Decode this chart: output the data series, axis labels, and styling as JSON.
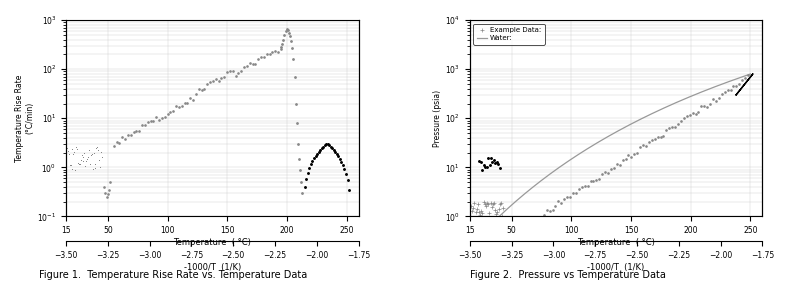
{
  "fig1": {
    "title": "Figure 1.  Temperature Rise Rate vs. Temperature Data",
    "xlabel_top": "Temperature  ( °C)",
    "xlabel_bottom": "-1000/T  (1/K)",
    "ylabel": "Temperature Rise Rate\n(°C/min)",
    "xlim_temp": [
      15,
      260
    ],
    "xlim_inv": [
      -3.5,
      -1.75
    ],
    "xticks_temp": [
      15,
      50,
      100,
      150,
      200,
      250
    ],
    "xticks_inv": [
      -3.5,
      -3.25,
      -3.0,
      -2.75,
      -2.5,
      -2.25,
      -2.0,
      -1.75
    ]
  },
  "fig2": {
    "title": "Figure 2.  Pressure vs Temperature Data",
    "xlabel_top": "Temperature  ( °C)",
    "xlabel_bottom": "-1000/T  (1/K)",
    "ylabel": "Pressure (psia)",
    "xlim_temp": [
      15,
      260
    ],
    "xlim_inv": [
      -3.5,
      -1.75
    ],
    "xticks_temp": [
      15,
      50,
      100,
      150,
      200,
      250
    ],
    "xticks_inv": [
      -3.5,
      -3.25,
      -3.0,
      -2.75,
      -2.5,
      -2.25,
      -2.0,
      -1.75
    ],
    "legend_labels": [
      "Example Data:",
      "Water:"
    ]
  },
  "dot_color": "#888888",
  "black_color": "#000000",
  "gray_color": "#999999",
  "bg_color": "#ffffff",
  "grid_color": "#cccccc"
}
